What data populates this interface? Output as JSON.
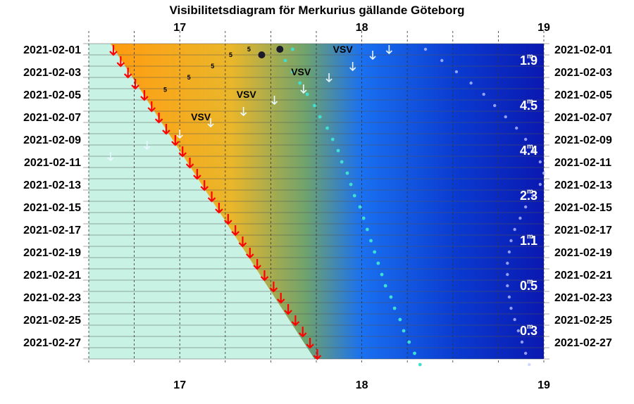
{
  "chart_data": {
    "type": "visibility-diagram",
    "title": "Visibilitetsdiagram för Merkurius gällande Göteborg",
    "x_axis": {
      "ticks": [
        "17",
        "18",
        "19"
      ],
      "range_hours": [
        16.5,
        19.0
      ]
    },
    "y_axis": {
      "labels": [
        "2021-02-01",
        "2021-02-03",
        "2021-02-05",
        "2021-02-07",
        "2021-02-09",
        "2021-02-11",
        "2021-02-13",
        "2021-02-15",
        "2021-02-17",
        "2021-02-19",
        "2021-02-21",
        "2021-02-23",
        "2021-02-25",
        "2021-02-27"
      ],
      "first_day": 1,
      "last_day": 28
    },
    "sunset_hours": [
      16.62,
      16.66,
      16.7,
      16.74,
      16.79,
      16.83,
      16.87,
      16.91,
      16.96,
      17.0,
      17.04,
      17.08,
      17.12,
      17.16,
      17.2,
      17.25,
      17.29,
      17.33,
      17.37,
      17.41,
      17.45,
      17.5,
      17.54,
      17.58,
      17.62,
      17.66,
      17.7,
      17.74
    ],
    "mercury_path": [
      17.62,
      17.58,
      17.62,
      17.66,
      17.7,
      17.74,
      17.77,
      17.81,
      17.84,
      17.87,
      17.89,
      17.92,
      17.94,
      17.96,
      17.99,
      18.01,
      18.03,
      18.05,
      18.07,
      18.09,
      18.11,
      18.13,
      18.16,
      18.18,
      18.21,
      18.23,
      18.26,
      18.29,
      18.32
    ],
    "mercury_markers": [
      {
        "day": 1,
        "hour": 17.55
      },
      {
        "day": 1.5,
        "hour": 17.45
      }
    ],
    "moon_path": [
      18.35,
      18.44,
      18.52,
      18.6,
      18.67,
      18.73,
      18.79,
      18.85,
      18.9,
      18.94,
      18.98,
      19.0,
      18.98,
      18.94,
      18.9,
      18.87,
      18.84,
      18.82,
      18.81,
      18.8,
      18.8,
      18.8,
      18.81,
      18.82,
      18.84,
      18.86,
      18.88,
      18.9,
      18.92
    ],
    "azimuth_labels": [
      {
        "text": "VSV",
        "day": 1.0,
        "hour": 17.95
      },
      {
        "text": "VSV",
        "day": 3.0,
        "hour": 17.72
      },
      {
        "text": "VSV",
        "day": 5.0,
        "hour": 17.42
      },
      {
        "text": "VSV",
        "day": 7.0,
        "hour": 17.17
      }
    ],
    "five_labels": [
      {
        "text": "5",
        "day": 1.0,
        "hour": 17.38
      },
      {
        "text": "5",
        "day": 1.5,
        "hour": 17.28
      },
      {
        "text": "5",
        "day": 2.5,
        "hour": 17.18
      },
      {
        "text": "5",
        "day": 3.5,
        "hour": 17.05
      },
      {
        "text": "5",
        "day": 4.6,
        "hour": 16.92
      }
    ],
    "magnitude_labels": [
      {
        "value": "1.9",
        "unit": "m",
        "day": 2.0
      },
      {
        "value": "4.5",
        "unit": "m",
        "day": 6.0
      },
      {
        "value": "4.4",
        "unit": "m",
        "day": 10.0
      },
      {
        "value": "2.3",
        "unit": "m",
        "day": 14.0
      },
      {
        "value": "1.1",
        "unit": "m",
        "day": 18.0
      },
      {
        "value": "0.5",
        "unit": "m",
        "day": 22.0
      },
      {
        "value": "0.3",
        "unit": "m",
        "day": 26.0
      }
    ],
    "colors": {
      "background_day": "#c8f2e4",
      "twilight_orange": "#ff9a10",
      "twilight_yellow": "#f3b625",
      "dusk_blue": "#1a70f0",
      "night_blue": "#0a18b0",
      "sunset_arrow": "#ff0000",
      "mercury": "#40e0d0",
      "moon": "#c0c8ff"
    }
  }
}
